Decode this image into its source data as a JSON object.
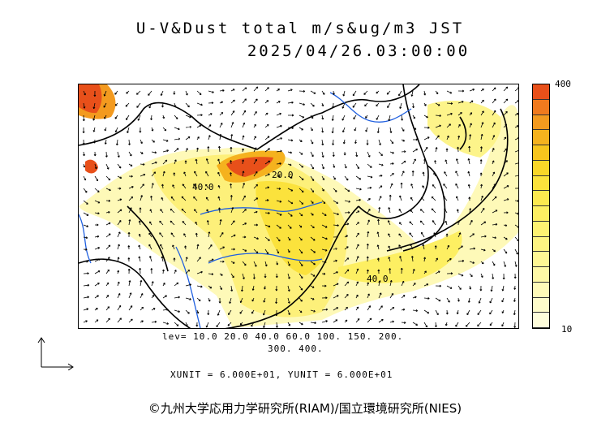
{
  "title_line1": "U-V&Dust total m/s&ug/m3 JST",
  "title_line2": "2025/04/26.03:00:00",
  "colorbar": {
    "max_label": "400",
    "min_label": "10",
    "colors": [
      "#e8501a",
      "#f07a1e",
      "#f39a1f",
      "#f5b21e",
      "#f7c51d",
      "#f9d628",
      "#fbe23c",
      "#fce94f",
      "#fdef62",
      "#fdf272",
      "#fdf482",
      "#fef794",
      "#fef9a6",
      "#fefab8",
      "#fefcca",
      "#fefddb"
    ]
  },
  "contour_labels": [
    "40.0",
    "20.0",
    "40.0"
  ],
  "levels_line1": "lev= 10.0 20.0 40.0 60.0 100. 150. 200.",
  "levels_line2": "300. 400.",
  "units_text": "XUNIT = 6.000E+01, YUNIT = 6.000E+01",
  "copyright": "©九州大学応用力学研究所(RIAM)/国立環境研究所(NIES)"
}
